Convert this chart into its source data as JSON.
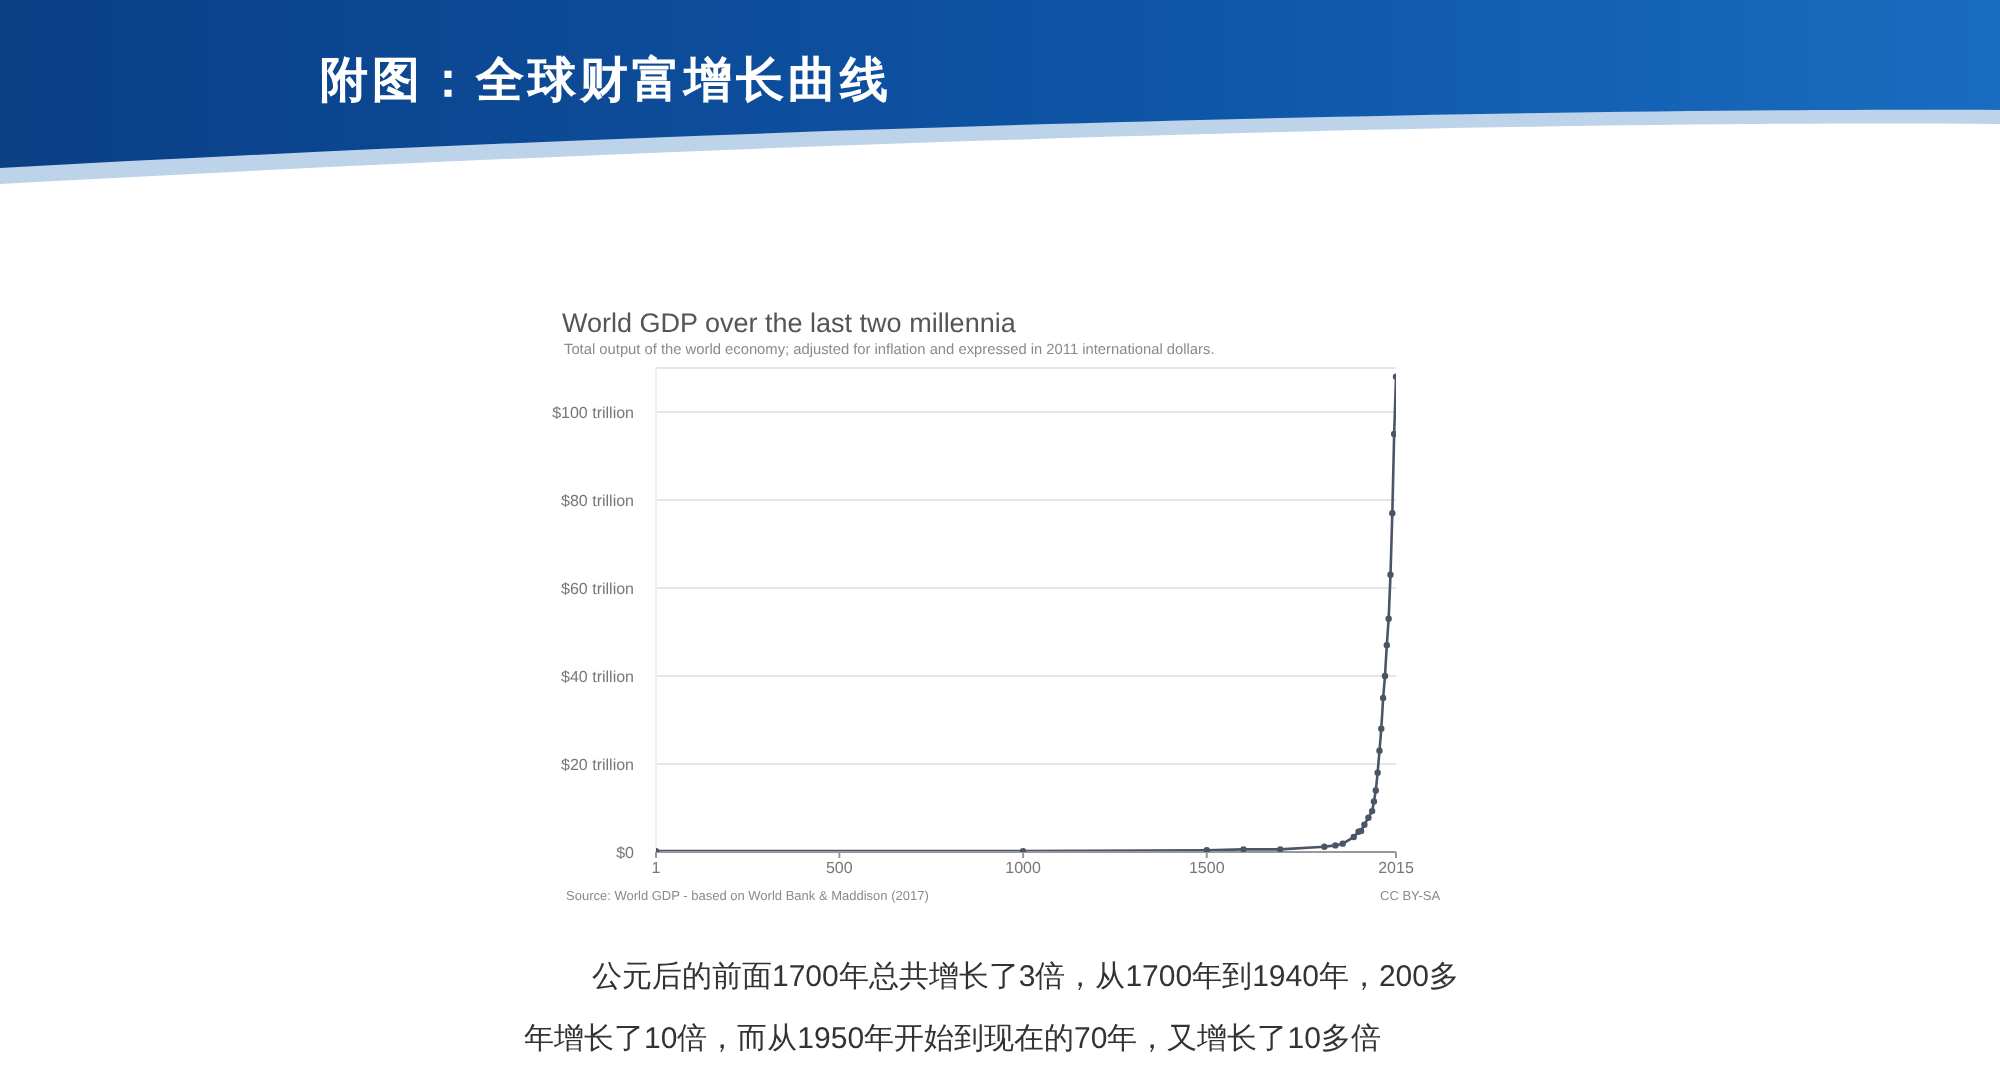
{
  "chart_data": {
    "type": "line",
    "title": "World GDP over the last two millennia",
    "subtitle": "Total output of the world economy; adjusted for inflation and expressed in 2011 international dollars.",
    "annotations": [
      "附图：全球财富增长曲线",
      "Source: World GDP - based on World Bank & Maddison (2017)",
      "CC BY-SA",
      "公元后的前面1700年总共增长了3倍，从1700年到1940年，200多年增长了10倍，而从1950年开始到现在的70年，又增长了10多倍"
    ],
    "x": [
      1,
      1000,
      1500,
      1600,
      1700,
      1820,
      1850,
      1870,
      1900,
      1913,
      1920,
      1929,
      1940,
      1950,
      1955,
      1960,
      1965,
      1970,
      1975,
      1980,
      1985,
      1990,
      1995,
      2000,
      2005,
      2010,
      2015
    ],
    "series": [
      {
        "color": "#4a5566",
        "values": [
          0.2,
          0.2,
          0.4,
          0.6,
          0.6,
          1.2,
          1.5,
          1.9,
          3.4,
          4.6,
          4.8,
          6.2,
          7.8,
          9.3,
          11.5,
          14,
          18,
          23,
          28,
          35,
          40,
          47,
          53,
          63,
          77,
          95,
          108
        ]
      }
    ],
    "xlim": [
      1,
      2015
    ],
    "xticks": [
      1,
      500,
      1000,
      1500,
      2015
    ],
    "ylim": [
      0,
      110
    ],
    "yticks": [
      {
        "value": 0,
        "label": "$0"
      },
      {
        "value": 20,
        "label": "$20 trillion"
      },
      {
        "value": 40,
        "label": "$40 trillion"
      },
      {
        "value": 60,
        "label": "$60 trillion"
      },
      {
        "value": 80,
        "label": "$80 trillion"
      },
      {
        "value": 100,
        "label": "$100 trillion"
      }
    ],
    "grid": "y",
    "marker": "circle",
    "line_style": "solid"
  }
}
